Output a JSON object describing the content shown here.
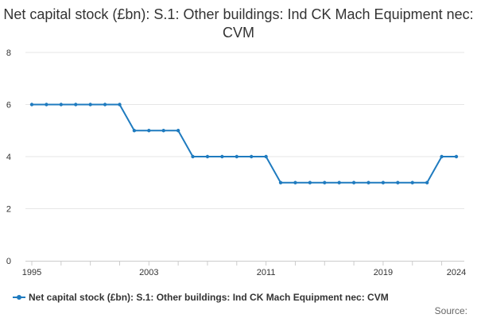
{
  "chart_data": {
    "type": "line",
    "title": "Net capital stock (£bn): S.1: Other buildings: Ind CK Mach Equipment nec: CVM",
    "xlabel": "",
    "ylabel": "",
    "x": [
      1995,
      1996,
      1997,
      1998,
      1999,
      2000,
      2001,
      2002,
      2003,
      2004,
      2005,
      2006,
      2007,
      2008,
      2009,
      2010,
      2011,
      2012,
      2013,
      2014,
      2015,
      2016,
      2017,
      2018,
      2019,
      2020,
      2021,
      2022,
      2023,
      2024
    ],
    "series": [
      {
        "name": "Net capital stock (£bn): S.1: Other buildings: Ind CK Mach Equipment nec: CVM",
        "values": [
          6,
          6,
          6,
          6,
          6,
          6,
          6,
          5,
          5,
          5,
          5,
          4,
          4,
          4,
          4,
          4,
          4,
          3,
          3,
          3,
          3,
          3,
          3,
          3,
          3,
          3,
          3,
          3,
          4,
          4
        ],
        "color": "#1f7bbf"
      }
    ],
    "ylim": [
      0,
      8
    ],
    "y_ticks": [
      0,
      2,
      4,
      6,
      8
    ],
    "x_tick_labels": [
      1995,
      2003,
      2011,
      2019,
      2024
    ],
    "grid": true,
    "legend": "bottom-left"
  },
  "source_label": "Source:"
}
